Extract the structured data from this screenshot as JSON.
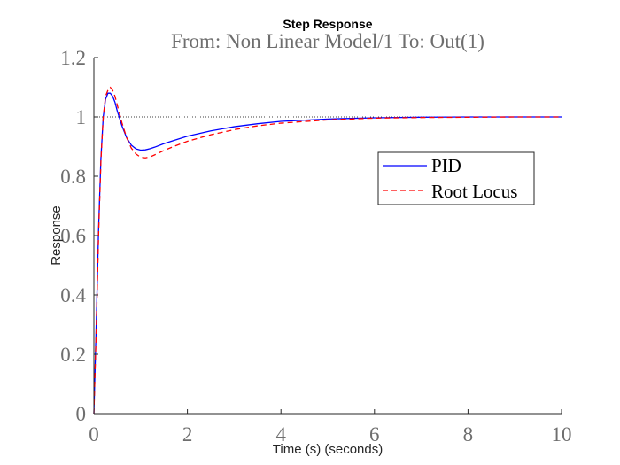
{
  "chart_data": {
    "type": "line",
    "title": "Step Response",
    "subtitle": "From: Non Linear Model/1  To: Out(1)",
    "xlabel": "Time (s) (seconds)",
    "ylabel": "Response",
    "xlim": [
      0,
      10
    ],
    "ylim": [
      0,
      1.2
    ],
    "x_ticks": [
      "0",
      "2",
      "4",
      "6",
      "8",
      "10"
    ],
    "y_ticks": [
      "0",
      "0.2",
      "0.4",
      "0.6",
      "0.8",
      "1",
      "1.2"
    ],
    "grid": false,
    "legend_position": "right",
    "reference_line": 1,
    "series": [
      {
        "name": "PID",
        "color": "#0000ff",
        "style": "solid",
        "x": [
          0,
          0.05,
          0.1,
          0.15,
          0.2,
          0.25,
          0.3,
          0.35,
          0.4,
          0.45,
          0.5,
          0.6,
          0.7,
          0.8,
          0.9,
          1.0,
          1.1,
          1.2,
          1.3,
          1.5,
          1.7,
          2.0,
          2.5,
          3.0,
          3.5,
          4.0,
          5.0,
          6.0,
          7.0,
          8.0,
          9.0,
          10.0
        ],
        "y": [
          0,
          0.3,
          0.62,
          0.86,
          1.0,
          1.06,
          1.08,
          1.08,
          1.07,
          1.05,
          1.02,
          0.97,
          0.93,
          0.905,
          0.892,
          0.888,
          0.889,
          0.893,
          0.898,
          0.91,
          0.92,
          0.935,
          0.953,
          0.967,
          0.977,
          0.985,
          0.993,
          0.997,
          0.999,
          1.0,
          1.0,
          1.0
        ]
      },
      {
        "name": "Root Locus",
        "color": "#ff0000",
        "style": "dashed",
        "x": [
          0,
          0.05,
          0.1,
          0.15,
          0.2,
          0.25,
          0.3,
          0.35,
          0.4,
          0.45,
          0.5,
          0.6,
          0.7,
          0.8,
          0.9,
          1.0,
          1.1,
          1.2,
          1.3,
          1.5,
          1.7,
          2.0,
          2.5,
          3.0,
          3.5,
          4.0,
          5.0,
          6.0,
          7.0,
          8.0,
          9.0,
          10.0
        ],
        "y": [
          0,
          0.28,
          0.6,
          0.85,
          1.0,
          1.07,
          1.09,
          1.1,
          1.09,
          1.07,
          1.04,
          0.98,
          0.93,
          0.895,
          0.875,
          0.864,
          0.862,
          0.865,
          0.872,
          0.887,
          0.9,
          0.918,
          0.94,
          0.957,
          0.97,
          0.979,
          0.99,
          0.996,
          0.998,
          0.999,
          1.0,
          1.0
        ]
      }
    ]
  }
}
